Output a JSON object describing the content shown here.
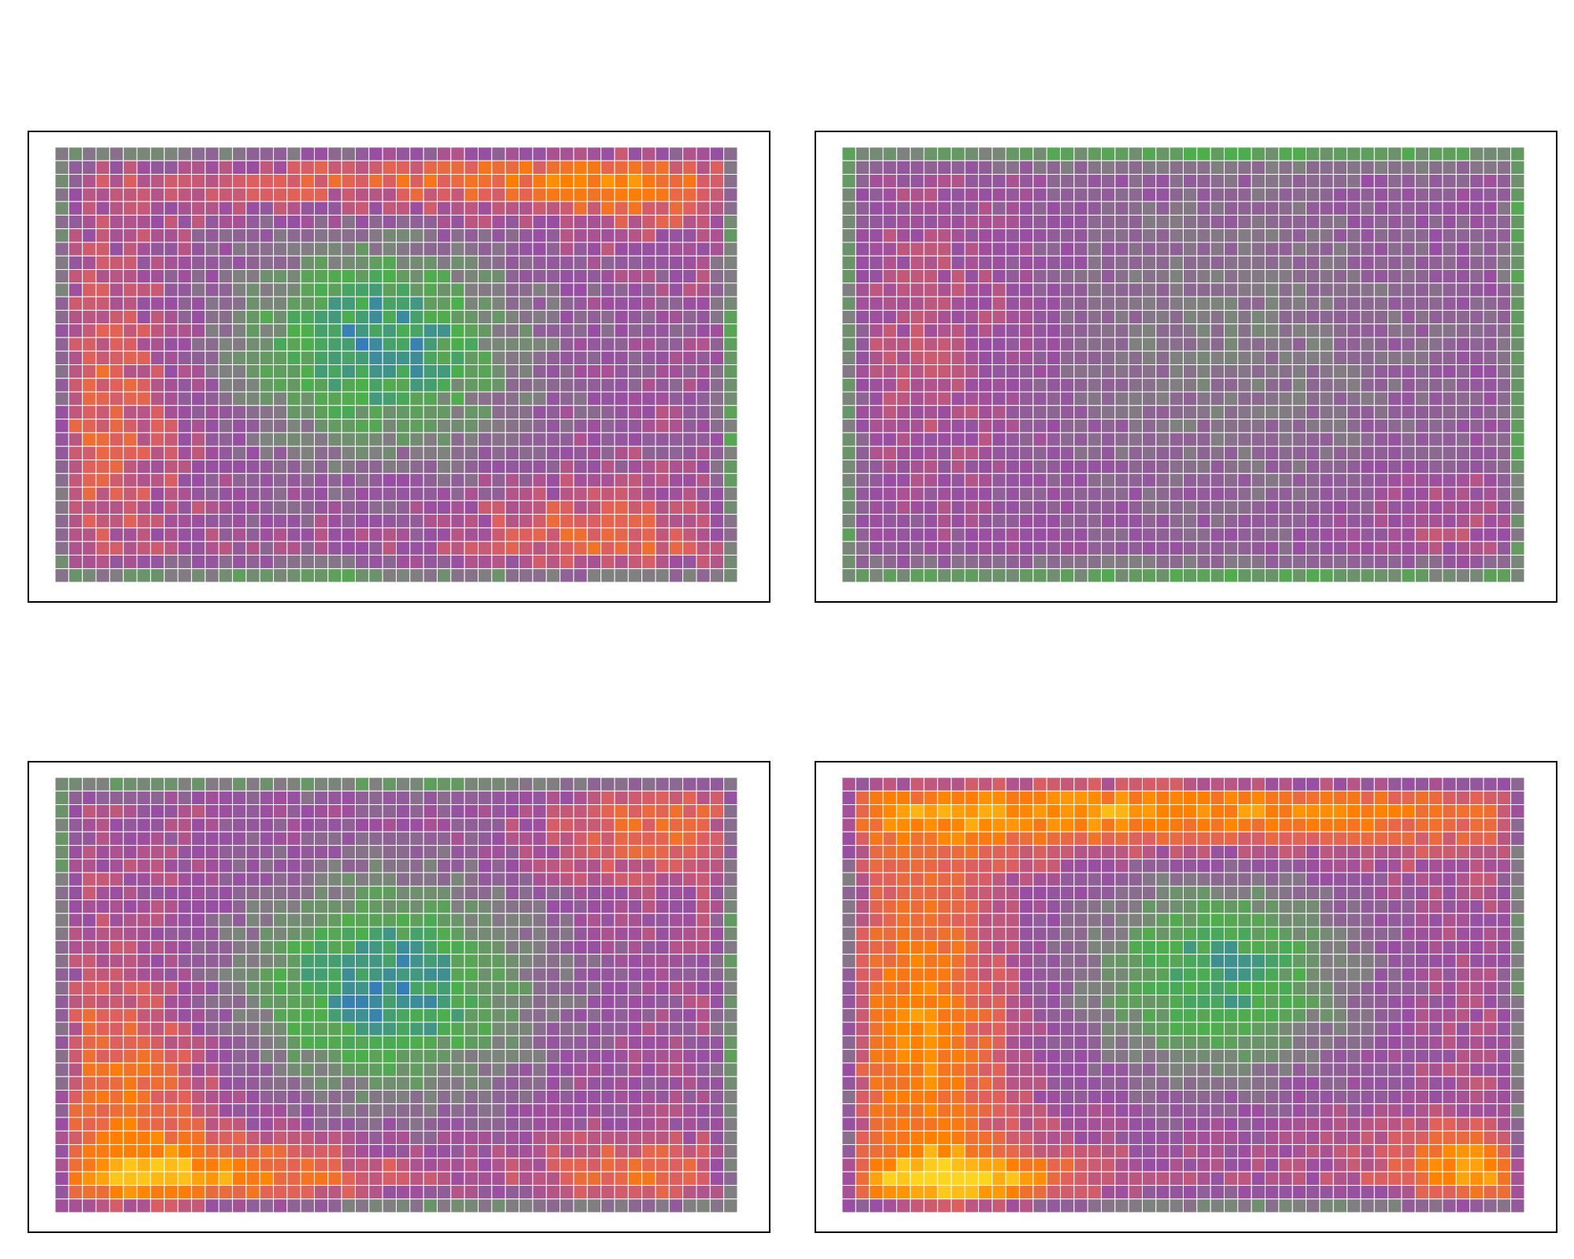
{
  "figure": {
    "layout": "2x2",
    "background": "#ffffff"
  },
  "chart_data": [
    {
      "type": "heatmap",
      "panel": "top-left",
      "rows": 32,
      "cols": 50,
      "colormap": [
        "#377eb8",
        "#4daf4a",
        "#808080",
        "#984ea3",
        "#e0605c",
        "#ff7f00",
        "#fed51e"
      ],
      "value_range": [
        0,
        1
      ],
      "value_model": {
        "base": 0.5,
        "center_low": {
          "cx": 0.47,
          "cy": 0.45,
          "sx": 0.15,
          "sy": 0.17,
          "amp": -0.45
        },
        "hot_spots": [
          {
            "cx": 0.62,
            "cy": 0.06,
            "sx": 0.3,
            "sy": 0.07,
            "amp": 0.28
          },
          {
            "cx": 0.85,
            "cy": 0.08,
            "sx": 0.08,
            "sy": 0.1,
            "amp": 0.12
          },
          {
            "cx": 0.05,
            "cy": 0.6,
            "sx": 0.1,
            "sy": 0.25,
            "amp": 0.2
          },
          {
            "cx": 0.8,
            "cy": 0.9,
            "sx": 0.14,
            "sy": 0.08,
            "amp": 0.2
          }
        ],
        "border_low": true,
        "noise": 0.08
      },
      "xlabel": "",
      "ylabel": "",
      "title": ""
    },
    {
      "type": "heatmap",
      "panel": "top-right",
      "rows": 32,
      "cols": 50,
      "colormap": [
        "#377eb8",
        "#4daf4a",
        "#808080",
        "#984ea3",
        "#e0605c",
        "#ff7f00",
        "#fed51e"
      ],
      "value_range": [
        0,
        1
      ],
      "value_model": {
        "base": 0.48,
        "center_low": {
          "cx": 0.55,
          "cy": 0.45,
          "sx": 0.25,
          "sy": 0.3,
          "amp": -0.12
        },
        "hot_spots": [
          {
            "cx": 0.15,
            "cy": 0.45,
            "sx": 0.12,
            "sy": 0.25,
            "amp": 0.12
          },
          {
            "cx": 0.9,
            "cy": 0.85,
            "sx": 0.1,
            "sy": 0.08,
            "amp": 0.1
          }
        ],
        "border_low": true,
        "noise": 0.06
      },
      "xlabel": "",
      "ylabel": "",
      "title": ""
    },
    {
      "type": "heatmap",
      "panel": "bottom-left",
      "rows": 32,
      "cols": 50,
      "colormap": [
        "#377eb8",
        "#4daf4a",
        "#808080",
        "#984ea3",
        "#e0605c",
        "#ff7f00",
        "#fed51e"
      ],
      "value_range": [
        0,
        1
      ],
      "value_model": {
        "base": 0.52,
        "center_low": {
          "cx": 0.48,
          "cy": 0.48,
          "sx": 0.16,
          "sy": 0.18,
          "amp": -0.48
        },
        "hot_spots": [
          {
            "cx": 0.88,
            "cy": 0.1,
            "sx": 0.12,
            "sy": 0.1,
            "amp": 0.2
          },
          {
            "cx": 0.1,
            "cy": 0.75,
            "sx": 0.1,
            "sy": 0.25,
            "amp": 0.25
          },
          {
            "cx": 0.25,
            "cy": 0.92,
            "sx": 0.18,
            "sy": 0.06,
            "amp": 0.3
          },
          {
            "cx": 0.85,
            "cy": 0.92,
            "sx": 0.1,
            "sy": 0.06,
            "amp": 0.22
          }
        ],
        "border_low": true,
        "noise": 0.07
      },
      "xlabel": "",
      "ylabel": "",
      "title": ""
    },
    {
      "type": "heatmap",
      "panel": "bottom-right",
      "rows": 32,
      "cols": 50,
      "colormap": [
        "#377eb8",
        "#4daf4a",
        "#808080",
        "#984ea3",
        "#e0605c",
        "#ff7f00",
        "#fed51e"
      ],
      "value_range": [
        0,
        1
      ],
      "value_model": {
        "base": 0.55,
        "center_low": {
          "cx": 0.55,
          "cy": 0.45,
          "sx": 0.15,
          "sy": 0.18,
          "amp": -0.45
        },
        "hot_spots": [
          {
            "cx": 0.45,
            "cy": 0.07,
            "sx": 0.4,
            "sy": 0.07,
            "amp": 0.38
          },
          {
            "cx": 0.12,
            "cy": 0.6,
            "sx": 0.08,
            "sy": 0.3,
            "amp": 0.3
          },
          {
            "cx": 0.18,
            "cy": 0.93,
            "sx": 0.12,
            "sy": 0.05,
            "amp": 0.38
          },
          {
            "cx": 0.92,
            "cy": 0.9,
            "sx": 0.08,
            "sy": 0.06,
            "amp": 0.34
          }
        ],
        "border_low": true,
        "noise": 0.06
      },
      "xlabel": "",
      "ylabel": "",
      "title": ""
    }
  ]
}
